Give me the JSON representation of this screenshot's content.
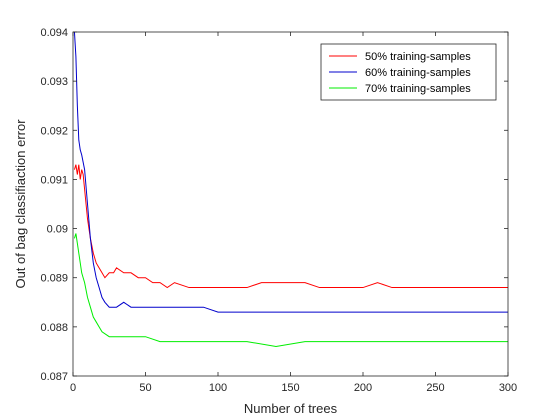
{
  "chart_data": {
    "type": "line",
    "xlabel": "Number of trees",
    "ylabel": "Out of bag classifiaction error",
    "xlim": [
      0,
      300
    ],
    "ylim": [
      0.087,
      0.094
    ],
    "x_ticks": [
      "0",
      "50",
      "100",
      "150",
      "200",
      "250",
      "300"
    ],
    "y_ticks": [
      "0.087",
      "0.088",
      "0.089",
      "0.09",
      "0.091",
      "0.092",
      "0.093",
      "0.094"
    ],
    "grid": false,
    "legend_position": "top-right",
    "series": [
      {
        "name": "50% training-samples",
        "color": "#ff0000",
        "points": [
          [
            1,
            0.0912
          ],
          [
            2,
            0.0913
          ],
          [
            3,
            0.0911
          ],
          [
            4,
            0.0913
          ],
          [
            5,
            0.091
          ],
          [
            6,
            0.0912
          ],
          [
            7,
            0.0911
          ],
          [
            8,
            0.0908
          ],
          [
            9,
            0.0905
          ],
          [
            10,
            0.0902
          ],
          [
            12,
            0.0898
          ],
          [
            14,
            0.0895
          ],
          [
            16,
            0.0893
          ],
          [
            18,
            0.0892
          ],
          [
            20,
            0.0891
          ],
          [
            22,
            0.089
          ],
          [
            25,
            0.0891
          ],
          [
            28,
            0.0891
          ],
          [
            30,
            0.0892
          ],
          [
            35,
            0.0891
          ],
          [
            40,
            0.0891
          ],
          [
            45,
            0.089
          ],
          [
            50,
            0.089
          ],
          [
            55,
            0.0889
          ],
          [
            60,
            0.0889
          ],
          [
            65,
            0.0888
          ],
          [
            70,
            0.0889
          ],
          [
            80,
            0.0888
          ],
          [
            90,
            0.0888
          ],
          [
            100,
            0.0888
          ],
          [
            110,
            0.0888
          ],
          [
            120,
            0.0888
          ],
          [
            130,
            0.0889
          ],
          [
            140,
            0.0889
          ],
          [
            150,
            0.0889
          ],
          [
            160,
            0.0889
          ],
          [
            170,
            0.0888
          ],
          [
            180,
            0.0888
          ],
          [
            190,
            0.0888
          ],
          [
            200,
            0.0888
          ],
          [
            210,
            0.0889
          ],
          [
            220,
            0.0888
          ],
          [
            230,
            0.0888
          ],
          [
            240,
            0.0888
          ],
          [
            250,
            0.0888
          ],
          [
            260,
            0.0888
          ],
          [
            270,
            0.0888
          ],
          [
            280,
            0.0888
          ],
          [
            290,
            0.0888
          ],
          [
            300,
            0.0888
          ]
        ]
      },
      {
        "name": "60% training-samples",
        "color": "#0000cc",
        "points": [
          [
            1,
            0.094
          ],
          [
            2,
            0.0935
          ],
          [
            3,
            0.0925
          ],
          [
            4,
            0.0918
          ],
          [
            5,
            0.0916
          ],
          [
            6,
            0.0915
          ],
          [
            8,
            0.0912
          ],
          [
            10,
            0.0905
          ],
          [
            12,
            0.0898
          ],
          [
            14,
            0.0893
          ],
          [
            16,
            0.089
          ],
          [
            18,
            0.0888
          ],
          [
            20,
            0.0886
          ],
          [
            22,
            0.0885
          ],
          [
            25,
            0.0884
          ],
          [
            30,
            0.0884
          ],
          [
            35,
            0.0885
          ],
          [
            40,
            0.0884
          ],
          [
            45,
            0.0884
          ],
          [
            50,
            0.0884
          ],
          [
            60,
            0.0884
          ],
          [
            70,
            0.0884
          ],
          [
            80,
            0.0884
          ],
          [
            90,
            0.0884
          ],
          [
            100,
            0.0883
          ],
          [
            120,
            0.0883
          ],
          [
            140,
            0.0883
          ],
          [
            160,
            0.0883
          ],
          [
            180,
            0.0883
          ],
          [
            200,
            0.0883
          ],
          [
            210,
            0.0883
          ],
          [
            220,
            0.0883
          ],
          [
            240,
            0.0883
          ],
          [
            260,
            0.0883
          ],
          [
            280,
            0.0883
          ],
          [
            300,
            0.0883
          ]
        ]
      },
      {
        "name": "70% training-samples",
        "color": "#00ee00",
        "points": [
          [
            1,
            0.0898
          ],
          [
            2,
            0.0899
          ],
          [
            3,
            0.0897
          ],
          [
            4,
            0.0895
          ],
          [
            5,
            0.0893
          ],
          [
            6,
            0.0891
          ],
          [
            7,
            0.089
          ],
          [
            8,
            0.0889
          ],
          [
            10,
            0.0886
          ],
          [
            12,
            0.0884
          ],
          [
            14,
            0.0882
          ],
          [
            16,
            0.0881
          ],
          [
            18,
            0.088
          ],
          [
            20,
            0.0879
          ],
          [
            25,
            0.0878
          ],
          [
            30,
            0.0878
          ],
          [
            35,
            0.0878
          ],
          [
            40,
            0.0878
          ],
          [
            45,
            0.0878
          ],
          [
            50,
            0.0878
          ],
          [
            60,
            0.0877
          ],
          [
            70,
            0.0877
          ],
          [
            80,
            0.0877
          ],
          [
            90,
            0.0877
          ],
          [
            100,
            0.0877
          ],
          [
            120,
            0.0877
          ],
          [
            140,
            0.0876
          ],
          [
            160,
            0.0877
          ],
          [
            180,
            0.0877
          ],
          [
            200,
            0.0877
          ],
          [
            220,
            0.0877
          ],
          [
            240,
            0.0877
          ],
          [
            260,
            0.0877
          ],
          [
            280,
            0.0877
          ],
          [
            300,
            0.0877
          ]
        ]
      }
    ]
  }
}
